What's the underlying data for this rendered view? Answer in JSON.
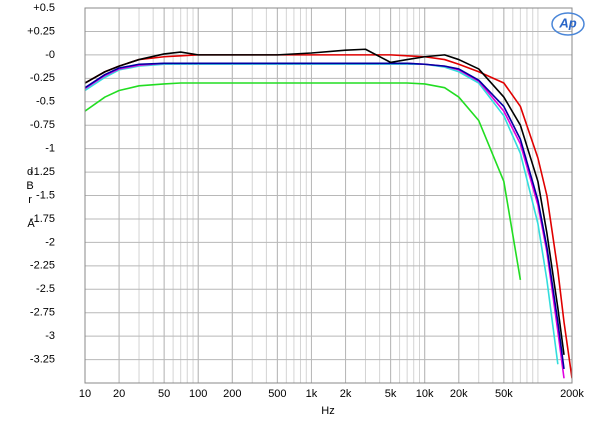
{
  "chart_data": {
    "type": "line",
    "logo": "Ap",
    "xlabel": "Hz",
    "ylabel": "dBr",
    "ylabel2": "A",
    "xscale": "log",
    "grid": true,
    "x": [
      10,
      15,
      20,
      30,
      50,
      70,
      100,
      200,
      500,
      1000,
      2000,
      3000,
      5000,
      7000,
      10000,
      15000,
      20000,
      30000,
      50000,
      70000,
      100000,
      120000,
      150000,
      170000,
      200000
    ],
    "series": [
      {
        "name": "green",
        "color": "#22dd22",
        "values": [
          -0.6,
          -0.45,
          -0.38,
          -0.33,
          -0.31,
          -0.3,
          -0.3,
          -0.3,
          -0.3,
          -0.3,
          -0.3,
          -0.3,
          -0.3,
          -0.3,
          -0.31,
          -0.35,
          -0.45,
          -0.7,
          -1.35,
          -2.4,
          null,
          null,
          null,
          null,
          null
        ]
      },
      {
        "name": "cyan",
        "color": "#33dddd",
        "values": [
          -0.38,
          -0.24,
          -0.16,
          -0.12,
          -0.1,
          -0.1,
          -0.1,
          -0.1,
          -0.1,
          -0.1,
          -0.1,
          -0.1,
          -0.1,
          -0.1,
          -0.1,
          -0.13,
          -0.18,
          -0.3,
          -0.65,
          -1.05,
          -1.8,
          -2.4,
          -3.3,
          null,
          null
        ]
      },
      {
        "name": "magenta",
        "color": "#e000e0",
        "values": [
          -0.36,
          -0.22,
          -0.15,
          -0.11,
          -0.09,
          -0.09,
          -0.09,
          -0.09,
          -0.09,
          -0.09,
          -0.09,
          -0.09,
          -0.09,
          -0.09,
          -0.1,
          -0.12,
          -0.16,
          -0.28,
          -0.6,
          -0.95,
          -1.6,
          -2.1,
          -2.95,
          -3.45,
          null
        ]
      },
      {
        "name": "blue",
        "color": "#0000a0",
        "values": [
          -0.35,
          -0.21,
          -0.14,
          -0.1,
          -0.09,
          -0.09,
          -0.09,
          -0.09,
          -0.09,
          -0.09,
          -0.09,
          -0.09,
          -0.09,
          -0.09,
          -0.1,
          -0.12,
          -0.15,
          -0.27,
          -0.55,
          -0.9,
          -1.55,
          -2.05,
          -2.85,
          -3.35,
          null
        ]
      },
      {
        "name": "red",
        "color": "#e00000",
        "values": [
          -0.3,
          -0.18,
          -0.12,
          -0.05,
          -0.02,
          -0.01,
          0,
          0,
          0,
          0,
          0,
          0,
          0,
          -0.01,
          -0.02,
          -0.05,
          -0.1,
          -0.18,
          -0.3,
          -0.55,
          -1.1,
          -1.5,
          -2.3,
          -2.85,
          -3.45
        ]
      },
      {
        "name": "black",
        "color": "#000000",
        "values": [
          -0.3,
          -0.18,
          -0.12,
          -0.05,
          0.01,
          0.03,
          0,
          0,
          0,
          0.02,
          0.05,
          0.06,
          -0.08,
          -0.05,
          -0.02,
          0,
          -0.05,
          -0.15,
          -0.45,
          -0.75,
          -1.35,
          -1.9,
          -2.7,
          -3.2,
          null
        ]
      }
    ],
    "xlim": [
      10,
      200000
    ],
    "xticks": [
      10,
      20,
      50,
      100,
      200,
      500,
      {
        "value": 1000,
        "label": "1k"
      },
      {
        "value": 2000,
        "label": "2k"
      },
      {
        "value": 5000,
        "label": "5k"
      },
      {
        "value": 10000,
        "label": "10k"
      },
      {
        "value": 20000,
        "label": "20k"
      },
      {
        "value": 50000,
        "label": "50k"
      },
      {
        "value": 200000,
        "label": "200k"
      }
    ],
    "ylim": [
      -3.5,
      0.5
    ],
    "yticks": [
      {
        "value": 0.5,
        "label": "+0.5"
      },
      {
        "value": 0.25,
        "label": "+0.25"
      },
      {
        "value": 0,
        "label": "-0"
      },
      -0.25,
      -0.5,
      -0.75,
      -1,
      -1.25,
      -1.5,
      -1.75,
      -2,
      -2.25,
      -2.5,
      -2.75,
      -3,
      -3.25
    ]
  }
}
